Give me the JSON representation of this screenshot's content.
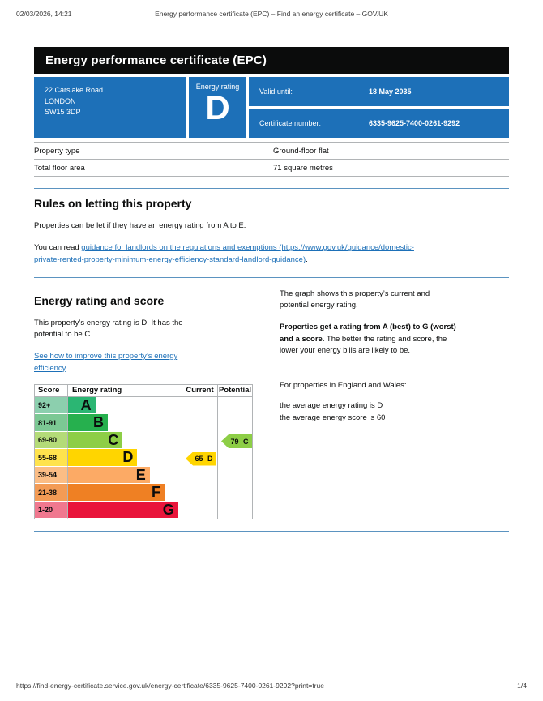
{
  "colors": {
    "brand_blue": "#1d70b8",
    "banner_black": "#0b0c0c",
    "link_blue": "#1d70b8",
    "rule_blue": "#5b93c0",
    "grid_gray": "#b1b4b6",
    "text": "#0b0c0c"
  },
  "print_header": {
    "datetime": "02/03/2026, 14:21",
    "title": "Energy performance certificate (EPC) – Find an energy certificate – GOV.UK"
  },
  "print_footer": {
    "url": "https://find-energy-certificate.service.gov.uk/energy-certificate/6335-9625-7400-0261-9292?print=true",
    "page": "1/4"
  },
  "banner": {
    "title": "Energy performance certificate (EPC)"
  },
  "summary": {
    "address_line1": "22 Carslake Road",
    "address_line2": "LONDON",
    "address_line3": "SW15 3DP",
    "energy_rating_label": "Energy rating",
    "energy_rating": "D",
    "valid_until_label": "Valid until:",
    "valid_until": "18 May 2035",
    "certificate_number_label": "Certificate number:",
    "certificate_number": "6335-9625-7400-0261-9292"
  },
  "property_table": {
    "rows": [
      {
        "label": "Property type",
        "value": "Ground-floor flat"
      },
      {
        "label": "Total floor area",
        "value": "71 square metres"
      }
    ]
  },
  "letting_rules": {
    "heading": "Rules on letting this property",
    "para1": "Properties can be let if they have an energy rating from A to E.",
    "para2_prefix": "You can read ",
    "para2_link": "guidance for landlords on the regulations and exemptions (https://www.gov.uk/guidance/domestic-\nprivate-rented-property-minimum-energy-efficiency-standard-landlord-guidance)",
    "para2_suffix": "."
  },
  "rating_section": {
    "heading": "Energy rating and score",
    "para1": "This property’s energy rating is D. It has the\npotential to be C.",
    "improve_link": "See how to improve this property’s energy\nefficiency",
    "improve_suffix": ".",
    "right_para1": "The graph shows this property’s current and\npotential energy rating.",
    "right_para2_bold": "Properties get a rating from A (best) to G (worst)\nand a score.",
    "right_para2_rest": " The better the rating and score, the\nlower your energy bills are likely to be.",
    "right_para3": "For properties in England and Wales:",
    "right_para4": "the average energy rating is D\nthe average energy score is 60"
  },
  "chart_data": {
    "type": "epc-rating-bands",
    "headers": [
      "Score",
      "Energy rating",
      "Current",
      "Potential"
    ],
    "bands": [
      {
        "score_label": "92+",
        "letter": "A",
        "color": "#2bb673",
        "score_bg": "#8ccfae",
        "bar_width_pct": 24
      },
      {
        "score_label": "81-91",
        "letter": "B",
        "color": "#26b04e",
        "score_bg": "#7cc894",
        "bar_width_pct": 35
      },
      {
        "score_label": "69-80",
        "letter": "C",
        "color": "#8dce46",
        "score_bg": "#b4db78",
        "bar_width_pct": 48
      },
      {
        "score_label": "55-68",
        "letter": "D",
        "color": "#ffd500",
        "score_bg": "#ffe34d",
        "bar_width_pct": 61
      },
      {
        "score_label": "39-54",
        "letter": "E",
        "color": "#fcaa65",
        "score_bg": "#fbbd85",
        "bar_width_pct": 72
      },
      {
        "score_label": "21-38",
        "letter": "F",
        "color": "#ef8023",
        "score_bg": "#f39b55",
        "bar_width_pct": 85
      },
      {
        "score_label": "1-20",
        "letter": "G",
        "color": "#e9153b",
        "score_bg": "#f0788f",
        "bar_width_pct": 97
      }
    ],
    "current": {
      "label": "65 D",
      "score": 65,
      "letter": "D",
      "band_index": 3,
      "color": "#ffd500"
    },
    "potential": {
      "label": "79 C",
      "score": 79,
      "letter": "C",
      "band_index": 2,
      "color": "#8dce46"
    }
  }
}
